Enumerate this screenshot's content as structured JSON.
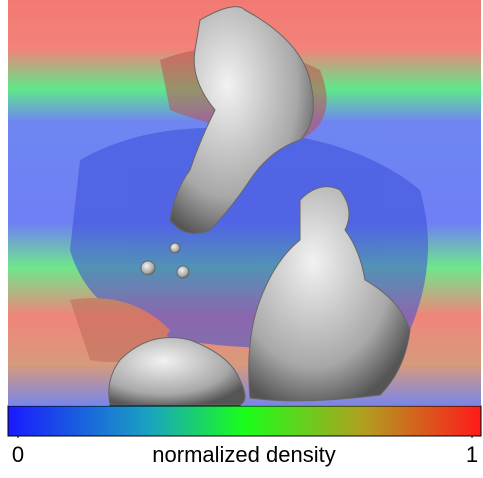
{
  "colorbar": {
    "label": "normalized density",
    "lim": [
      0,
      1
    ],
    "ticks": [
      0,
      1
    ]
  }
}
